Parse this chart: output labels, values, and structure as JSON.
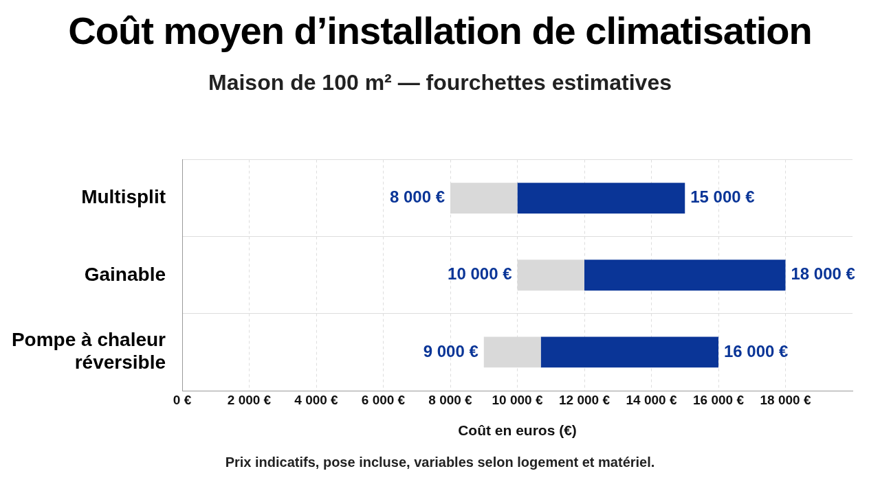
{
  "chart_data": {
    "type": "bar",
    "orientation": "horizontal",
    "title": "Coût moyen d’installation de climatisation",
    "subtitle": "Maison de 100 m² — fourchettes estimatives",
    "xlabel": "Coût en euros (€)",
    "categories": [
      "Multisplit",
      "Gainable",
      "Pompe à chaleur réversible"
    ],
    "series": [
      {
        "color": "#d9d9d9",
        "base": [
          8000,
          10000,
          9000
        ],
        "values": [
          2000,
          2000,
          1700
        ]
      },
      {
        "color": "#0a3597",
        "base": [
          10000,
          12000,
          10700
        ],
        "values": [
          5000,
          6000,
          5300
        ]
      }
    ],
    "xlim": [
      0,
      20000
    ],
    "xticks": [
      {
        "value": 0,
        "label": "0 €"
      },
      {
        "value": 2000,
        "label": "2 000 €"
      },
      {
        "value": 4000,
        "label": "4 000 €"
      },
      {
        "value": 6000,
        "label": "6 000 €"
      },
      {
        "value": 8000,
        "label": "8 000 €"
      },
      {
        "value": 10000,
        "label": "10 000 €"
      },
      {
        "value": 12000,
        "label": "12 000 €"
      },
      {
        "value": 14000,
        "label": "14 000 €"
      },
      {
        "value": 16000,
        "label": "16 000 €"
      },
      {
        "value": 18000,
        "label": "18 000 €"
      }
    ],
    "grid": true,
    "legend": false,
    "annotations": [
      "Prix indicatifs, pose incluse, variables selon logement et matériel.",
      {
        "text": "8 000 €",
        "x": 8000,
        "y": "Multisplit"
      },
      {
        "text": "15 000 €",
        "x": 15000,
        "y": "Multisplit"
      },
      {
        "text": "10 000 €",
        "x": 10000,
        "y": "Gainable"
      },
      {
        "text": "18 000 €",
        "x": 18000,
        "y": "Gainable"
      },
      {
        "text": "9 000 €",
        "x": 9000,
        "y": "Pompe à chaleur réversible"
      },
      {
        "text": "16 000 €",
        "x": 16000,
        "y": "Pompe à chaleur réversible"
      }
    ]
  }
}
